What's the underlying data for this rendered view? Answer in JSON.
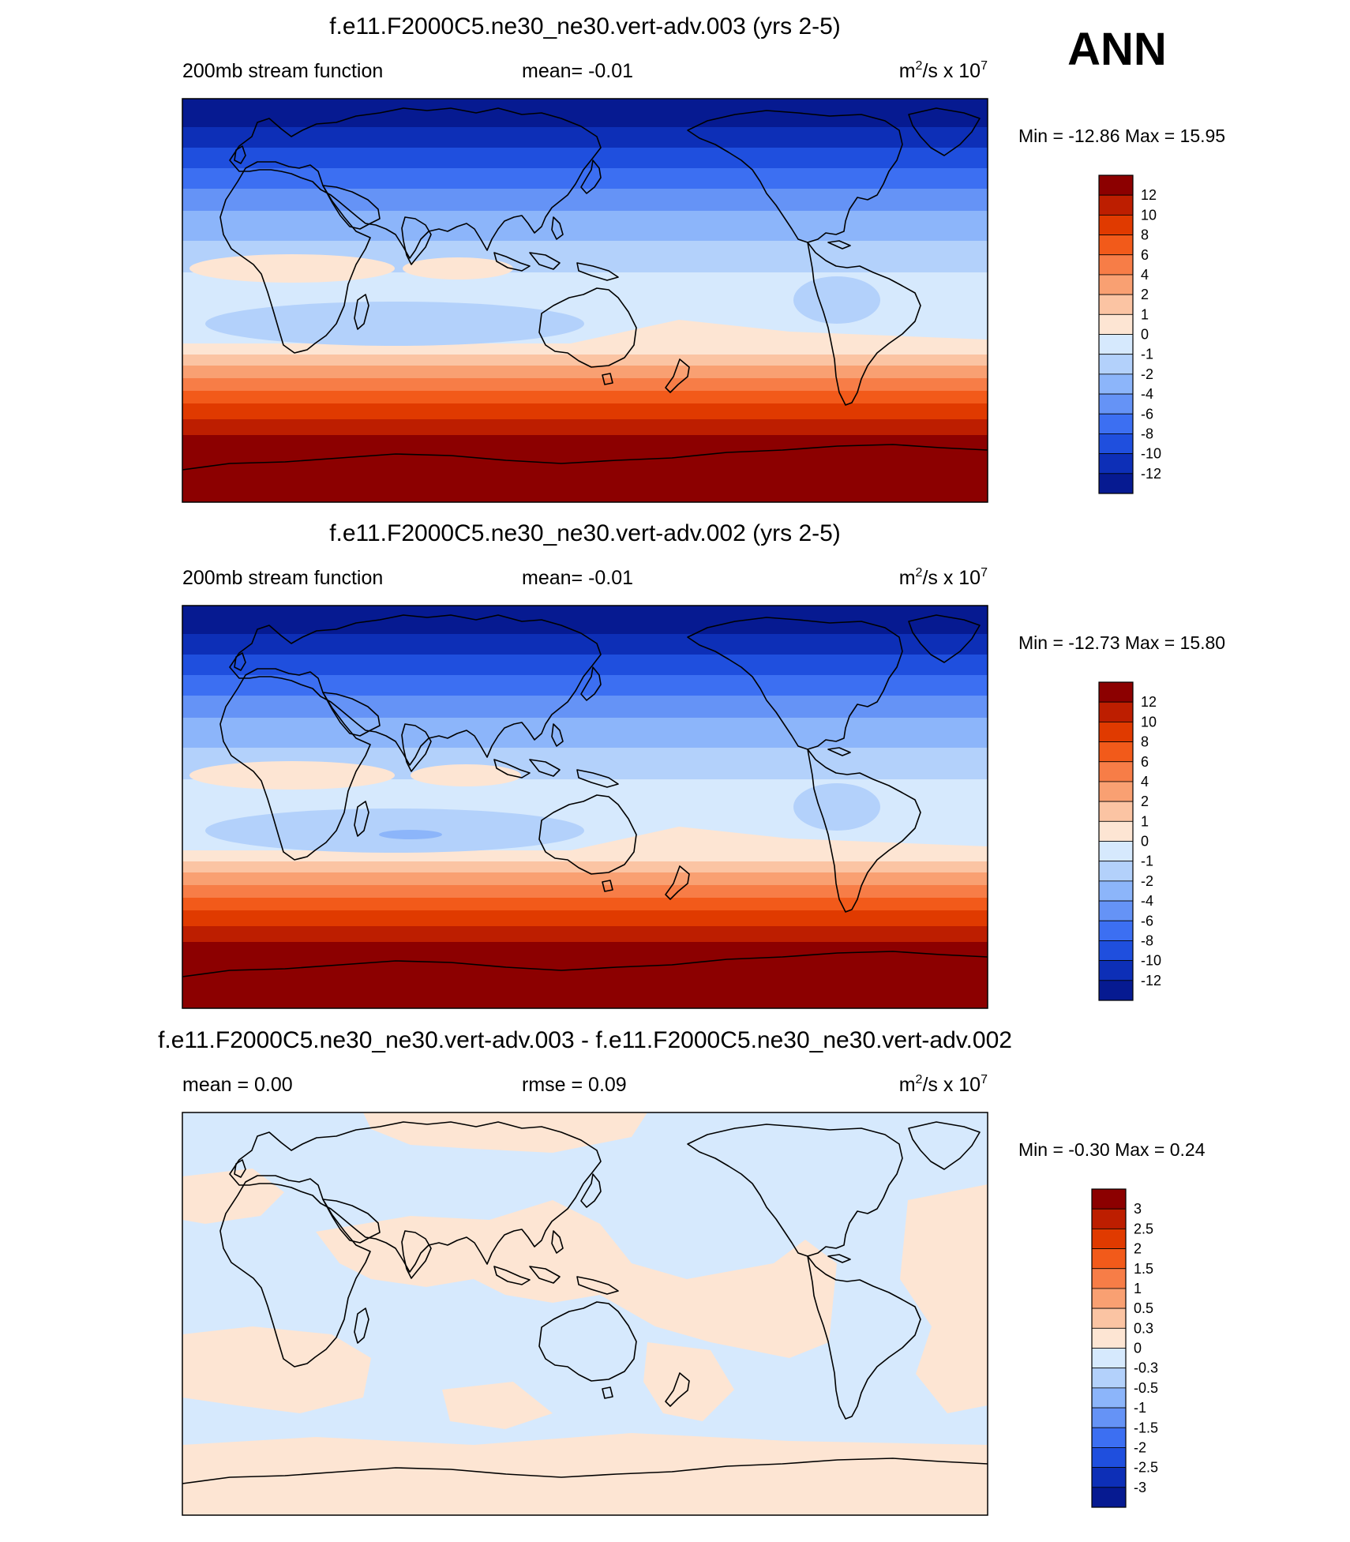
{
  "season": "ANN",
  "colors": {
    "frame": "#000000",
    "diff_pos": "#fde7d3",
    "diff_neg": "#d3e6fb"
  },
  "chart_data": [
    {
      "type": "heatmap",
      "title": "f.e11.F2000C5.ne30_ne30.vert-adv.003 (yrs 2-5)",
      "left_label": "200mb stream function",
      "center_label": "mean=  -0.01",
      "units_base": "m",
      "units_exp": "2",
      "units_mid": "/s x 10",
      "units_exp2": "7",
      "min_max": "Min = -12.86 Max =  15.95",
      "min": -12.86,
      "max": 15.95,
      "mean": -0.01,
      "colorbar_levels": [
        "12",
        "10",
        "8",
        "6",
        "4",
        "2",
        "1",
        "0",
        "-1",
        "-2",
        "-4",
        "-6",
        "-8",
        "-10",
        "-12"
      ],
      "colorbar_colors": [
        "#8c0000",
        "#bd1e00",
        "#e03a00",
        "#f25a1a",
        "#f77d47",
        "#f9a072",
        "#fbc4a3",
        "#fde5d3",
        "#d6e9fd",
        "#b3d1fb",
        "#8cb5fa",
        "#6593f6",
        "#3c6ff2",
        "#1f4fde",
        "#0d2fb7",
        "#061a91"
      ]
    },
    {
      "type": "heatmap",
      "title": "f.e11.F2000C5.ne30_ne30.vert-adv.002 (yrs 2-5)",
      "left_label": "200mb stream function",
      "center_label": "mean=  -0.01",
      "units_base": "m",
      "units_exp": "2",
      "units_mid": "/s x 10",
      "units_exp2": "7",
      "min_max": "Min = -12.73 Max =  15.80",
      "min": -12.73,
      "max": 15.8,
      "mean": -0.01,
      "colorbar_levels": [
        "12",
        "10",
        "8",
        "6",
        "4",
        "2",
        "1",
        "0",
        "-1",
        "-2",
        "-4",
        "-6",
        "-8",
        "-10",
        "-12"
      ],
      "colorbar_colors": [
        "#8c0000",
        "#bd1e00",
        "#e03a00",
        "#f25a1a",
        "#f77d47",
        "#f9a072",
        "#fbc4a3",
        "#fde5d3",
        "#d6e9fd",
        "#b3d1fb",
        "#8cb5fa",
        "#6593f6",
        "#3c6ff2",
        "#1f4fde",
        "#0d2fb7",
        "#061a91"
      ]
    },
    {
      "type": "heatmap",
      "title": "f.e11.F2000C5.ne30_ne30.vert-adv.003 - f.e11.F2000C5.ne30_ne30.vert-adv.002",
      "left_label": "mean =   0.00",
      "center_label": "rmse =   0.09",
      "units_base": "m",
      "units_exp": "2",
      "units_mid": "/s x 10",
      "units_exp2": "7",
      "min_max": "Min =  -0.30 Max =   0.24",
      "min": -0.3,
      "max": 0.24,
      "mean": 0.0,
      "rmse": 0.09,
      "colorbar_levels": [
        "3",
        "2.5",
        "2",
        "1.5",
        "1",
        "0.5",
        "0.3",
        "0",
        "-0.3",
        "-0.5",
        "-1",
        "-1.5",
        "-2",
        "-2.5",
        "-3"
      ],
      "colorbar_colors": [
        "#8c0000",
        "#bd1e00",
        "#e03a00",
        "#f25a1a",
        "#f77d47",
        "#f9a072",
        "#fbc4a3",
        "#fde5d3",
        "#d6e9fd",
        "#b3d1fb",
        "#8cb5fa",
        "#6593f6",
        "#3c6ff2",
        "#1f4fde",
        "#0d2fb7",
        "#061a91"
      ]
    }
  ]
}
